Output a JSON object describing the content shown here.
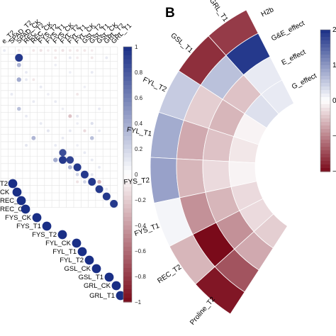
{
  "colors": {
    "pos": "#1a2f86",
    "neg": "#7a0a1a",
    "mid": "#ffffff",
    "grid": "#e3e3e3"
  },
  "chart_data": [
    {
      "type": "heatmap",
      "subtype": "correlation-matrix-lower",
      "column_labels": [
        "e_T2",
        "SPAD_T2",
        "SPAD_CK",
        "REC_T2",
        "REC_CK",
        "FYS_T2",
        "FYS_T1",
        "FYS_CK",
        "FYL_T2",
        "FYL_T1",
        "FYL_CK",
        "GSL_T2",
        "GSL_T1",
        "GSL_CK",
        "GRL_T2",
        "GRL_T1"
      ],
      "diagonal_labels": [
        "T2",
        "CK",
        "REC_T2",
        "REC_CK",
        "FYS_CK",
        "FYS_T1",
        "FYS_T2",
        "FYL_CK",
        "FYL_T1",
        "FYL_T2",
        "GSL_CK",
        "GSL_T1",
        "GRL_CK",
        "GRL_T1"
      ],
      "colorbar": {
        "ticks": [
          "1",
          "0.8",
          "0.6",
          "0.4",
          "0.2",
          "0",
          "−0.2",
          "−0.4",
          "−0.6",
          "−0.8",
          "−1"
        ],
        "range": [
          -1,
          1
        ]
      },
      "values": [
        {
          "r": 0,
          "c": 0,
          "v": 0.1
        },
        {
          "r": 0,
          "c": 2,
          "v": -0.1
        },
        {
          "r": 0,
          "c": 4,
          "v": -0.1
        },
        {
          "r": 0,
          "c": 5,
          "v": -0.12
        },
        {
          "r": 0,
          "c": 6,
          "v": -0.08
        },
        {
          "r": 0,
          "c": 7,
          "v": -0.1
        },
        {
          "r": 0,
          "c": 8,
          "v": -0.12
        },
        {
          "r": 0,
          "c": 9,
          "v": -0.1
        },
        {
          "r": 0,
          "c": 10,
          "v": -0.1
        },
        {
          "r": 0,
          "c": 11,
          "v": -0.1
        },
        {
          "r": 0,
          "c": 12,
          "v": -0.08
        },
        {
          "r": 1,
          "c": 2,
          "v": 0.95
        },
        {
          "r": 1,
          "c": 7,
          "v": -0.1
        },
        {
          "r": 1,
          "c": 9,
          "v": 0.1
        },
        {
          "r": 1,
          "c": 10,
          "v": -0.08
        },
        {
          "r": 1,
          "c": 12,
          "v": -0.1
        },
        {
          "r": 1,
          "c": 14,
          "v": 0.1
        },
        {
          "r": 2,
          "c": 2,
          "v": 0.35
        },
        {
          "r": 2,
          "c": 7,
          "v": 0.08
        },
        {
          "r": 3,
          "c": 3,
          "v": 0.1
        },
        {
          "r": 3,
          "c": 9,
          "v": 0.08
        },
        {
          "r": 3,
          "c": 12,
          "v": 0.1
        },
        {
          "r": 4,
          "c": 2,
          "v": 0.4
        },
        {
          "r": 4,
          "c": 3,
          "v": 0.1
        },
        {
          "r": 4,
          "c": 4,
          "v": -0.1
        },
        {
          "r": 5,
          "c": 5,
          "v": 0.1
        },
        {
          "r": 5,
          "c": 11,
          "v": 0.08
        },
        {
          "r": 6,
          "c": 1,
          "v": 0.1
        },
        {
          "r": 6,
          "c": 6,
          "v": 0.08
        },
        {
          "r": 6,
          "c": 10,
          "v": -0.1
        },
        {
          "r": 7,
          "c": 4,
          "v": 0.1
        },
        {
          "r": 7,
          "c": 7,
          "v": 0.1
        },
        {
          "r": 8,
          "c": 2,
          "v": 0.3
        },
        {
          "r": 8,
          "c": 8,
          "v": 0.08
        },
        {
          "r": 8,
          "c": 13,
          "v": 0.1
        },
        {
          "r": 9,
          "c": 3,
          "v": 0.1
        },
        {
          "r": 9,
          "c": 9,
          "v": -0.25
        },
        {
          "r": 9,
          "c": 10,
          "v": 0.12
        },
        {
          "r": 10,
          "c": 5,
          "v": 0.1
        },
        {
          "r": 10,
          "c": 10,
          "v": 0.08
        },
        {
          "r": 10,
          "c": 12,
          "v": 0.15
        },
        {
          "r": 11,
          "c": 6,
          "v": 0.12
        },
        {
          "r": 11,
          "c": 9,
          "v": 0.1
        },
        {
          "r": 11,
          "c": 11,
          "v": -0.15
        },
        {
          "r": 11,
          "c": 13,
          "v": 0.1
        },
        {
          "r": 12,
          "c": 4,
          "v": 0.35
        },
        {
          "r": 12,
          "c": 8,
          "v": 0.1
        },
        {
          "r": 12,
          "c": 12,
          "v": 0.3
        },
        {
          "r": 13,
          "c": 3,
          "v": 0.12
        },
        {
          "r": 13,
          "c": 7,
          "v": 0.1
        },
        {
          "r": 13,
          "c": 10,
          "v": 0.08
        },
        {
          "r": 14,
          "c": 8,
          "v": 0.85
        },
        {
          "r": 14,
          "c": 11,
          "v": 0.1
        },
        {
          "r": 15,
          "c": 7,
          "v": 0.4
        },
        {
          "r": 15,
          "c": 8,
          "v": 0.95
        },
        {
          "r": 15,
          "c": 9,
          "v": 0.9
        },
        {
          "r": 15,
          "c": 12,
          "v": 0.1
        },
        {
          "r": 16,
          "c": 9,
          "v": 0.35
        },
        {
          "r": 16,
          "c": 10,
          "v": 0.95
        },
        {
          "r": 16,
          "c": 13,
          "v": 0.1
        },
        {
          "r": 17,
          "c": 10,
          "v": 0.2
        },
        {
          "r": 17,
          "c": 11,
          "v": 0.95
        },
        {
          "r": 17,
          "c": 12,
          "v": 0.12
        },
        {
          "r": 18,
          "c": 10,
          "v": -0.12
        },
        {
          "r": 18,
          "c": 11,
          "v": 0.2
        },
        {
          "r": 18,
          "c": 12,
          "v": 0.95
        },
        {
          "r": 18,
          "c": 13,
          "v": -0.3
        },
        {
          "r": 19,
          "c": 13,
          "v": 0.95
        },
        {
          "r": 19,
          "c": 14,
          "v": 0.1
        },
        {
          "r": 20,
          "c": 14,
          "v": 0.95
        },
        {
          "r": 21,
          "c": 15,
          "v": 0.95
        }
      ]
    },
    {
      "type": "heatmap",
      "subtype": "circular",
      "panel_label": "B",
      "rings": [
        "H2b",
        "G&E_effect",
        "E_effect",
        "G_effect"
      ],
      "sectors": [
        "GRL_T1",
        "GSL_T1",
        "FYL_T2",
        "FYL_T1",
        "FYS_T2",
        "FYS_T1",
        "REC_T2",
        "Proline_T2"
      ],
      "sector_labels_shown": [
        "GRL_T1",
        "GSL_T1",
        "FYL_T2",
        "FYL_T1",
        "FYS_T2",
        "FYS_T1",
        "REC_T2",
        "Proline_T2"
      ],
      "values": [
        [
          -1.6,
          1.9,
          0.2,
          0.2
        ],
        [
          -1.7,
          0.6,
          -0.5,
          0.3
        ],
        [
          0.5,
          -0.4,
          -0.6,
          -0.1
        ],
        [
          0.8,
          -0.7,
          -0.5,
          -0.2
        ],
        [
          0.9,
          -0.6,
          -0.3,
          -0.1
        ],
        [
          0.1,
          -0.9,
          -0.6,
          -0.3
        ],
        [
          -0.6,
          -2.0,
          -0.9,
          -0.3
        ],
        [
          -1.9,
          -1.4,
          -0.7,
          -0.4
        ]
      ],
      "colorbar": {
        "ticks": [
          "2",
          "1",
          "0",
          "−1",
          "−2"
        ],
        "range": [
          -2,
          2
        ]
      }
    }
  ]
}
